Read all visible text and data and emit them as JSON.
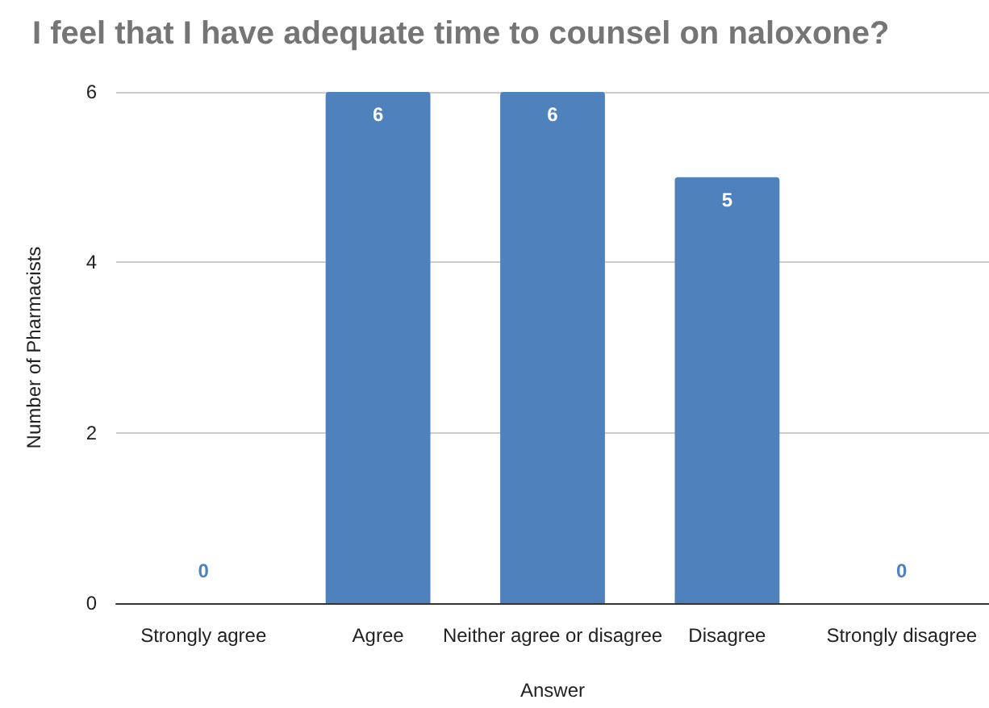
{
  "chart_data": {
    "type": "bar",
    "title": "I feel that I have adequate time to counsel on naloxone?",
    "xlabel": "Answer",
    "ylabel": "Number of Pharmacists",
    "categories": [
      "Strongly agree",
      "Agree",
      "Neither agree or disagree",
      "Disagree",
      "Strongly disagree"
    ],
    "values": [
      0,
      6,
      6,
      5,
      0
    ],
    "color": "#4f81bd",
    "ylim": [
      0,
      6
    ],
    "yticks": [
      0,
      2,
      4,
      6
    ],
    "grid": "y",
    "data_labels": true
  }
}
